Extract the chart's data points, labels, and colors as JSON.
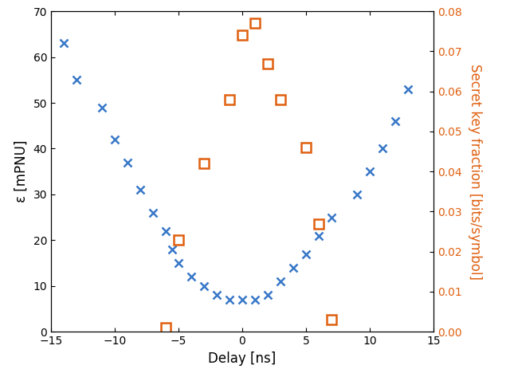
{
  "blue_x": [
    -14,
    -13,
    -11,
    -10,
    -9,
    -8,
    -7,
    -6,
    -5.5,
    -5,
    -4,
    -3,
    -2,
    -1,
    0,
    1,
    2,
    3,
    4,
    5,
    6,
    7,
    9,
    10,
    11,
    12,
    13
  ],
  "blue_y": [
    63,
    55,
    49,
    42,
    37,
    31,
    26,
    22,
    18,
    15,
    12,
    10,
    8,
    7,
    7,
    7,
    8,
    11,
    14,
    17,
    21,
    25,
    30,
    35,
    40,
    46,
    53
  ],
  "red_x": [
    -6,
    -5,
    -3,
    -1,
    0,
    1,
    2,
    3,
    5,
    6,
    7
  ],
  "red_y": [
    0.001,
    0.023,
    0.042,
    0.058,
    0.074,
    0.077,
    0.067,
    0.058,
    0.046,
    0.027,
    0.003
  ],
  "blue_color": "#3878c8",
  "red_color": "#e06010",
  "xlabel": "Delay [ns]",
  "ylabel_left": "ε [mPNU]",
  "ylabel_right": "Secret key fraction [bits/symbol]",
  "xlim": [
    -15,
    15
  ],
  "ylim_left": [
    0,
    70
  ],
  "ylim_right": [
    0,
    0.08
  ],
  "xticks": [
    -15,
    -10,
    -5,
    0,
    5,
    10,
    15
  ],
  "yticks_left": [
    0,
    10,
    20,
    30,
    40,
    50,
    60,
    70
  ],
  "yticks_right": [
    0,
    0.01,
    0.02,
    0.03,
    0.04,
    0.05,
    0.06,
    0.07,
    0.08
  ]
}
